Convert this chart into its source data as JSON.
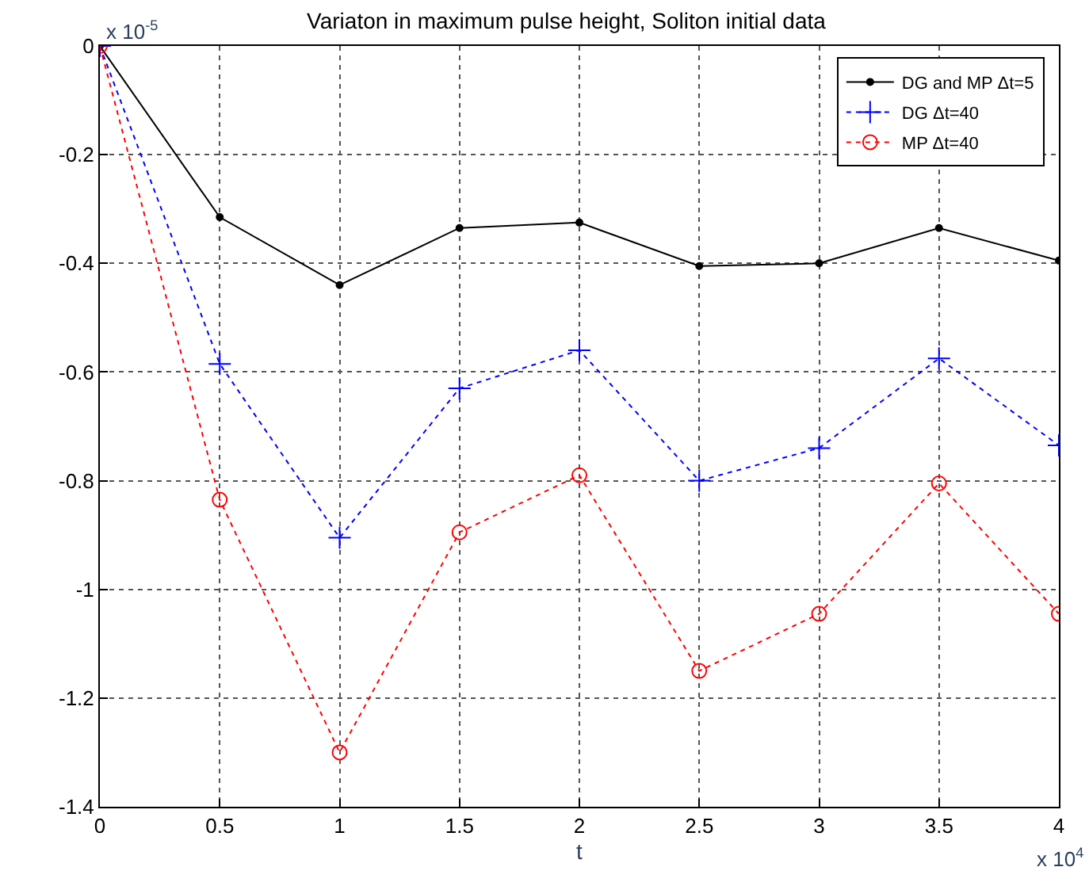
{
  "chart_data": {
    "type": "line",
    "title": "Variaton in maximum pulse height, Soliton initial data",
    "xlabel": "t",
    "x": [
      0,
      0.5,
      1,
      1.5,
      2,
      2.5,
      3,
      3.5,
      4
    ],
    "series": [
      {
        "name": "DG and MP Δt=5",
        "color": "#000000",
        "marker": "circle",
        "line_style": "solid",
        "values": [
          0,
          -0.315,
          -0.44,
          -0.335,
          -0.325,
          -0.405,
          -0.4,
          -0.335,
          -0.395
        ]
      },
      {
        "name": "DG Δt=40",
        "color": "#0000ff",
        "marker": "cross",
        "line_style": "dotted",
        "values": [
          0,
          -0.585,
          -0.905,
          -0.63,
          -0.56,
          -0.8,
          -0.74,
          -0.575,
          -0.735
        ]
      },
      {
        "name": "MP Δt=40",
        "color": "#ff0000",
        "marker": "circle-open",
        "line_style": "dotted",
        "values": [
          0,
          -0.835,
          -1.3,
          -0.895,
          -0.79,
          -1.15,
          -1.045,
          -0.805,
          -1.045
        ]
      }
    ],
    "xlim": [
      0,
      4
    ],
    "xticks": [
      0,
      0.5,
      1,
      1.5,
      2,
      2.5,
      3,
      3.5,
      4
    ],
    "ylim": [
      -1.4,
      0
    ],
    "yticks": [
      0,
      -0.2,
      -0.4,
      -0.6,
      -0.8,
      -1,
      -1.2,
      -1.4
    ],
    "grid": true,
    "legend": "top right",
    "annotations": [
      "x 10$^{-5}$",
      "x 10$^{4}$"
    ]
  }
}
